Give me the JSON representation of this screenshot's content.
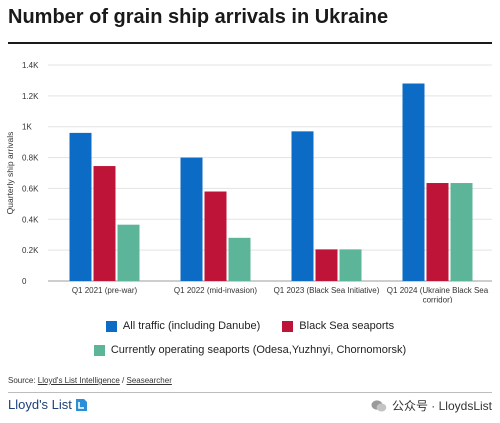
{
  "title": "Number of grain ship arrivals in Ukraine",
  "chart_data": {
    "type": "bar",
    "ylabel": "Quarterly ship arrivals",
    "xlabel": "",
    "ylim": [
      0,
      1400
    ],
    "yticks": [
      0,
      200,
      400,
      600,
      800,
      1000,
      1200,
      1400
    ],
    "ytick_labels": [
      "0",
      "0.2K",
      "0.4K",
      "0.6K",
      "0.8K",
      "1K",
      "1.2K",
      "1.4K"
    ],
    "grid": true,
    "categories": [
      "Q1 2021 (pre-war)",
      "Q1 2022 (mid-invasion)",
      "Q1 2023 (Black Sea Initiative)",
      "Q1 2024 (Ukraine Black Sea corridor)"
    ],
    "series": [
      {
        "name": "All traffic (including Danube)",
        "color": "#0c6bc4",
        "values": [
          960,
          800,
          970,
          1280
        ]
      },
      {
        "name": "Black Sea seaports",
        "color": "#bd1438",
        "values": [
          745,
          580,
          205,
          635
        ]
      },
      {
        "name": "Currently operating seaports (Odesa,Yuzhnyi, Chornomorsk)",
        "color": "#5cb598",
        "values": [
          365,
          280,
          205,
          635
        ]
      }
    ],
    "legend_position": "bottom"
  },
  "source": {
    "prefix": "Source: ",
    "link1": "Lloyd's List Intelligence",
    "separator": " / ",
    "link2": "Seasearcher"
  },
  "footer": {
    "logo_text": "Lloyd's List",
    "watermark_text": "公众号 · LloydsList"
  }
}
